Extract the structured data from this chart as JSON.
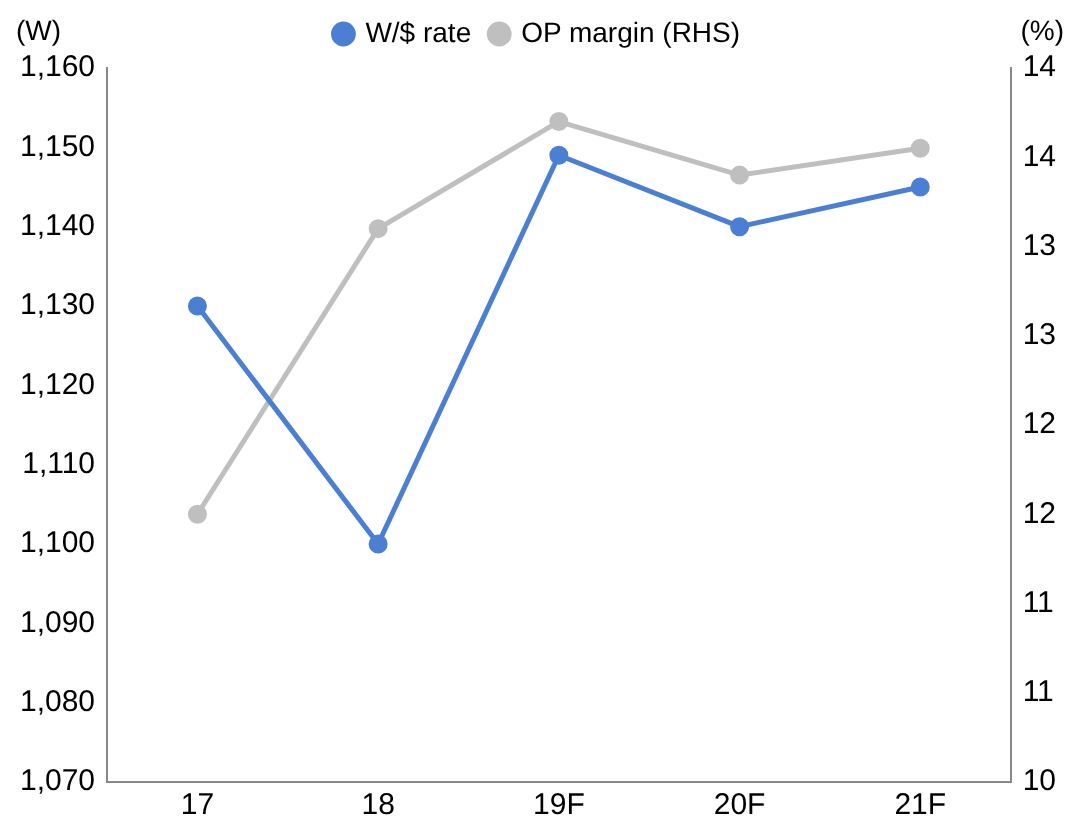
{
  "chart_data": {
    "type": "line",
    "categories": [
      "17",
      "18",
      "19F",
      "20F",
      "21F"
    ],
    "ylabel": "(W)",
    "y2label": "(%)",
    "series": [
      {
        "name": "W/$ rate",
        "color": "#4a7fd4",
        "values": [
          1130,
          1100,
          1149,
          1140,
          1145
        ]
      },
      {
        "name": "OP margin (RHS)",
        "color": "#bfbfbf",
        "values": [
          11.5,
          13.1,
          13.7,
          13.4,
          13.55
        ],
        "axis": "y2"
      }
    ],
    "ylim": [
      1070,
      1160
    ],
    "yticks": [
      {
        "value": 1070,
        "label": "1,070"
      },
      {
        "value": 1080,
        "label": "1,080"
      },
      {
        "value": 1090,
        "label": "1,090"
      },
      {
        "value": 1100,
        "label": "1,100"
      },
      {
        "value": 1110,
        "label": "1,110"
      },
      {
        "value": 1120,
        "label": "1,120"
      },
      {
        "value": 1130,
        "label": "1,130"
      },
      {
        "value": 1140,
        "label": "1,140"
      },
      {
        "value": 1150,
        "label": "1,150"
      },
      {
        "value": 1160,
        "label": "1,160"
      }
    ],
    "y2lim": [
      10,
      14
    ],
    "y2ticks": [
      10,
      {
        "value": 10.5,
        "label": "11"
      },
      11,
      {
        "value": 11.5,
        "label": "12"
      },
      12,
      {
        "value": 12.5,
        "label": "13"
      },
      13,
      {
        "value": 13.5,
        "label": "14"
      },
      14
    ],
    "grid": false,
    "legend": "top",
    "marker": "circle",
    "line_style": "solid"
  }
}
